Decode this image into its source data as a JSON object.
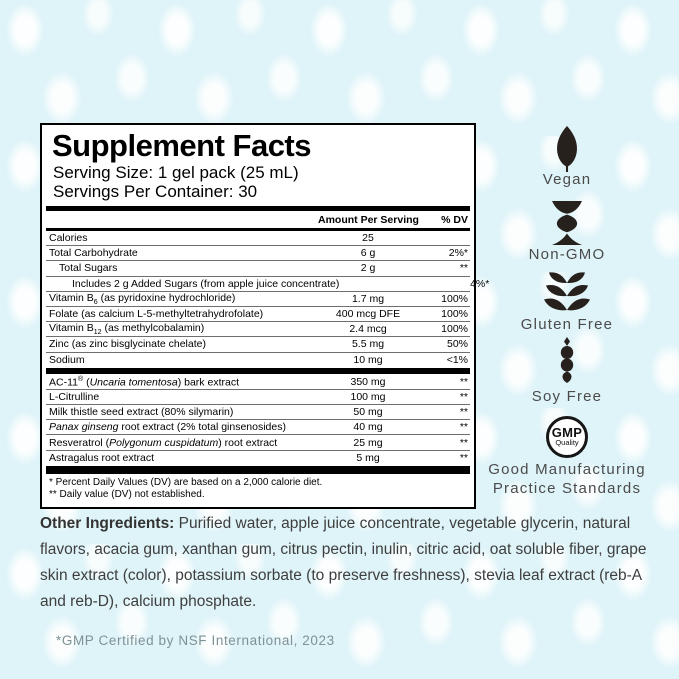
{
  "panel": {
    "title": "Supplement Facts",
    "serving_size": "Serving Size: 1 gel pack (25 mL)",
    "servings_per_container": "Servings Per Container: 30",
    "col_amount": "Amount Per Serving",
    "col_dv": "% DV",
    "sections": [
      {
        "rows": [
          {
            "name": [
              [
                "t",
                "Calories"
              ]
            ],
            "amount": "25",
            "dv": "",
            "indent": 0
          },
          {
            "name": [
              [
                "t",
                "Total Carbohydrate"
              ]
            ],
            "amount": "6 g",
            "dv": "2%*",
            "indent": 0
          },
          {
            "name": [
              [
                "t",
                "Total Sugars"
              ]
            ],
            "amount": "2 g",
            "dv": "**",
            "indent": 1
          },
          {
            "name": [
              [
                "t",
                "Includes 2 g Added Sugars (from apple juice concentrate)"
              ]
            ],
            "amount": "",
            "dv": "4%*",
            "indent": 2
          },
          {
            "name": [
              [
                "t",
                "Vitamin B"
              ],
              [
                "sub",
                "6"
              ],
              [
                "t",
                " (as pyridoxine hydrochloride)"
              ]
            ],
            "amount": "1.7 mg",
            "dv": "100%",
            "indent": 0
          },
          {
            "name": [
              [
                "t",
                "Folate (as calcium L-5-methyltetrahydrofolate)"
              ]
            ],
            "amount": "400 mcg DFE",
            "dv": "100%",
            "indent": 0
          },
          {
            "name": [
              [
                "t",
                "Vitamin B"
              ],
              [
                "sub",
                "12"
              ],
              [
                "t",
                " (as methylcobalamin)"
              ]
            ],
            "amount": "2.4 mcg",
            "dv": "100%",
            "indent": 0
          },
          {
            "name": [
              [
                "t",
                "Zinc (as zinc bisglycinate chelate)"
              ]
            ],
            "amount": "5.5 mg",
            "dv": "50%",
            "indent": 0
          },
          {
            "name": [
              [
                "t",
                "Sodium"
              ]
            ],
            "amount": "10 mg",
            "dv": "<1%",
            "indent": 0
          }
        ]
      },
      {
        "rows": [
          {
            "name": [
              [
                "t",
                "AC-11"
              ],
              [
                "sup",
                "®"
              ],
              [
                "t",
                " ("
              ],
              [
                "i",
                "Uncaria tomentosa"
              ],
              [
                "t",
                ") bark extract"
              ]
            ],
            "amount": "350 mg",
            "dv": "**",
            "indent": 0
          },
          {
            "name": [
              [
                "t",
                "L-Citrulline"
              ]
            ],
            "amount": "100 mg",
            "dv": "**",
            "indent": 0
          },
          {
            "name": [
              [
                "t",
                "Milk thistle seed extract (80% silymarin)"
              ]
            ],
            "amount": "50 mg",
            "dv": "**",
            "indent": 0
          },
          {
            "name": [
              [
                "i",
                "Panax ginseng"
              ],
              [
                "t",
                " root extract (2% total ginsenosides)"
              ]
            ],
            "amount": "40 mg",
            "dv": "**",
            "indent": 0
          },
          {
            "name": [
              [
                "t",
                "Resveratrol ("
              ],
              [
                "i",
                "Polygonum cuspidatum"
              ],
              [
                "t",
                ") root extract"
              ]
            ],
            "amount": "25 mg",
            "dv": "**",
            "indent": 0
          },
          {
            "name": [
              [
                "t",
                "Astragalus root extract"
              ]
            ],
            "amount": "5 mg",
            "dv": "**",
            "indent": 0
          }
        ]
      }
    ],
    "footnote1": "* Percent Daily Values (DV) are based on a 2,000 calorie diet.",
    "footnote2": "** Daily value (DV) not established."
  },
  "badges": [
    {
      "icon": "leaf-icon",
      "label": "Vegan"
    },
    {
      "icon": "dna-icon",
      "label": "Non-GMO"
    },
    {
      "icon": "wheat-icon",
      "label": "Gluten Free"
    },
    {
      "icon": "soybean-icon",
      "label": "Soy Free"
    },
    {
      "icon": "gmp-seal-icon",
      "label": "Good Manufacturing\nPractice Standards",
      "seal_text": "GMP",
      "seal_subtext": "Quality"
    }
  ],
  "other_ingredients": {
    "label": "Other Ingredients:",
    "text": " Purified water, apple juice concentrate, vegetable glycerin, natural flavors, acacia gum, xanthan gum, citrus pectin, inulin, citric acid, oat soluble fiber, grape skin extract (color), potassium sorbate (to preserve freshness), stevia leaf extract (reb-A and reb-D), calcium phosphate."
  },
  "footer": "*GMP Certified by NSF International, 2023",
  "colors": {
    "background": "#dff4f8",
    "panel_bg": "#ffffff",
    "panel_border": "#000000",
    "icon": "#27211e",
    "badge_label": "#4b4b4b",
    "footer_text": "#7d9196"
  }
}
